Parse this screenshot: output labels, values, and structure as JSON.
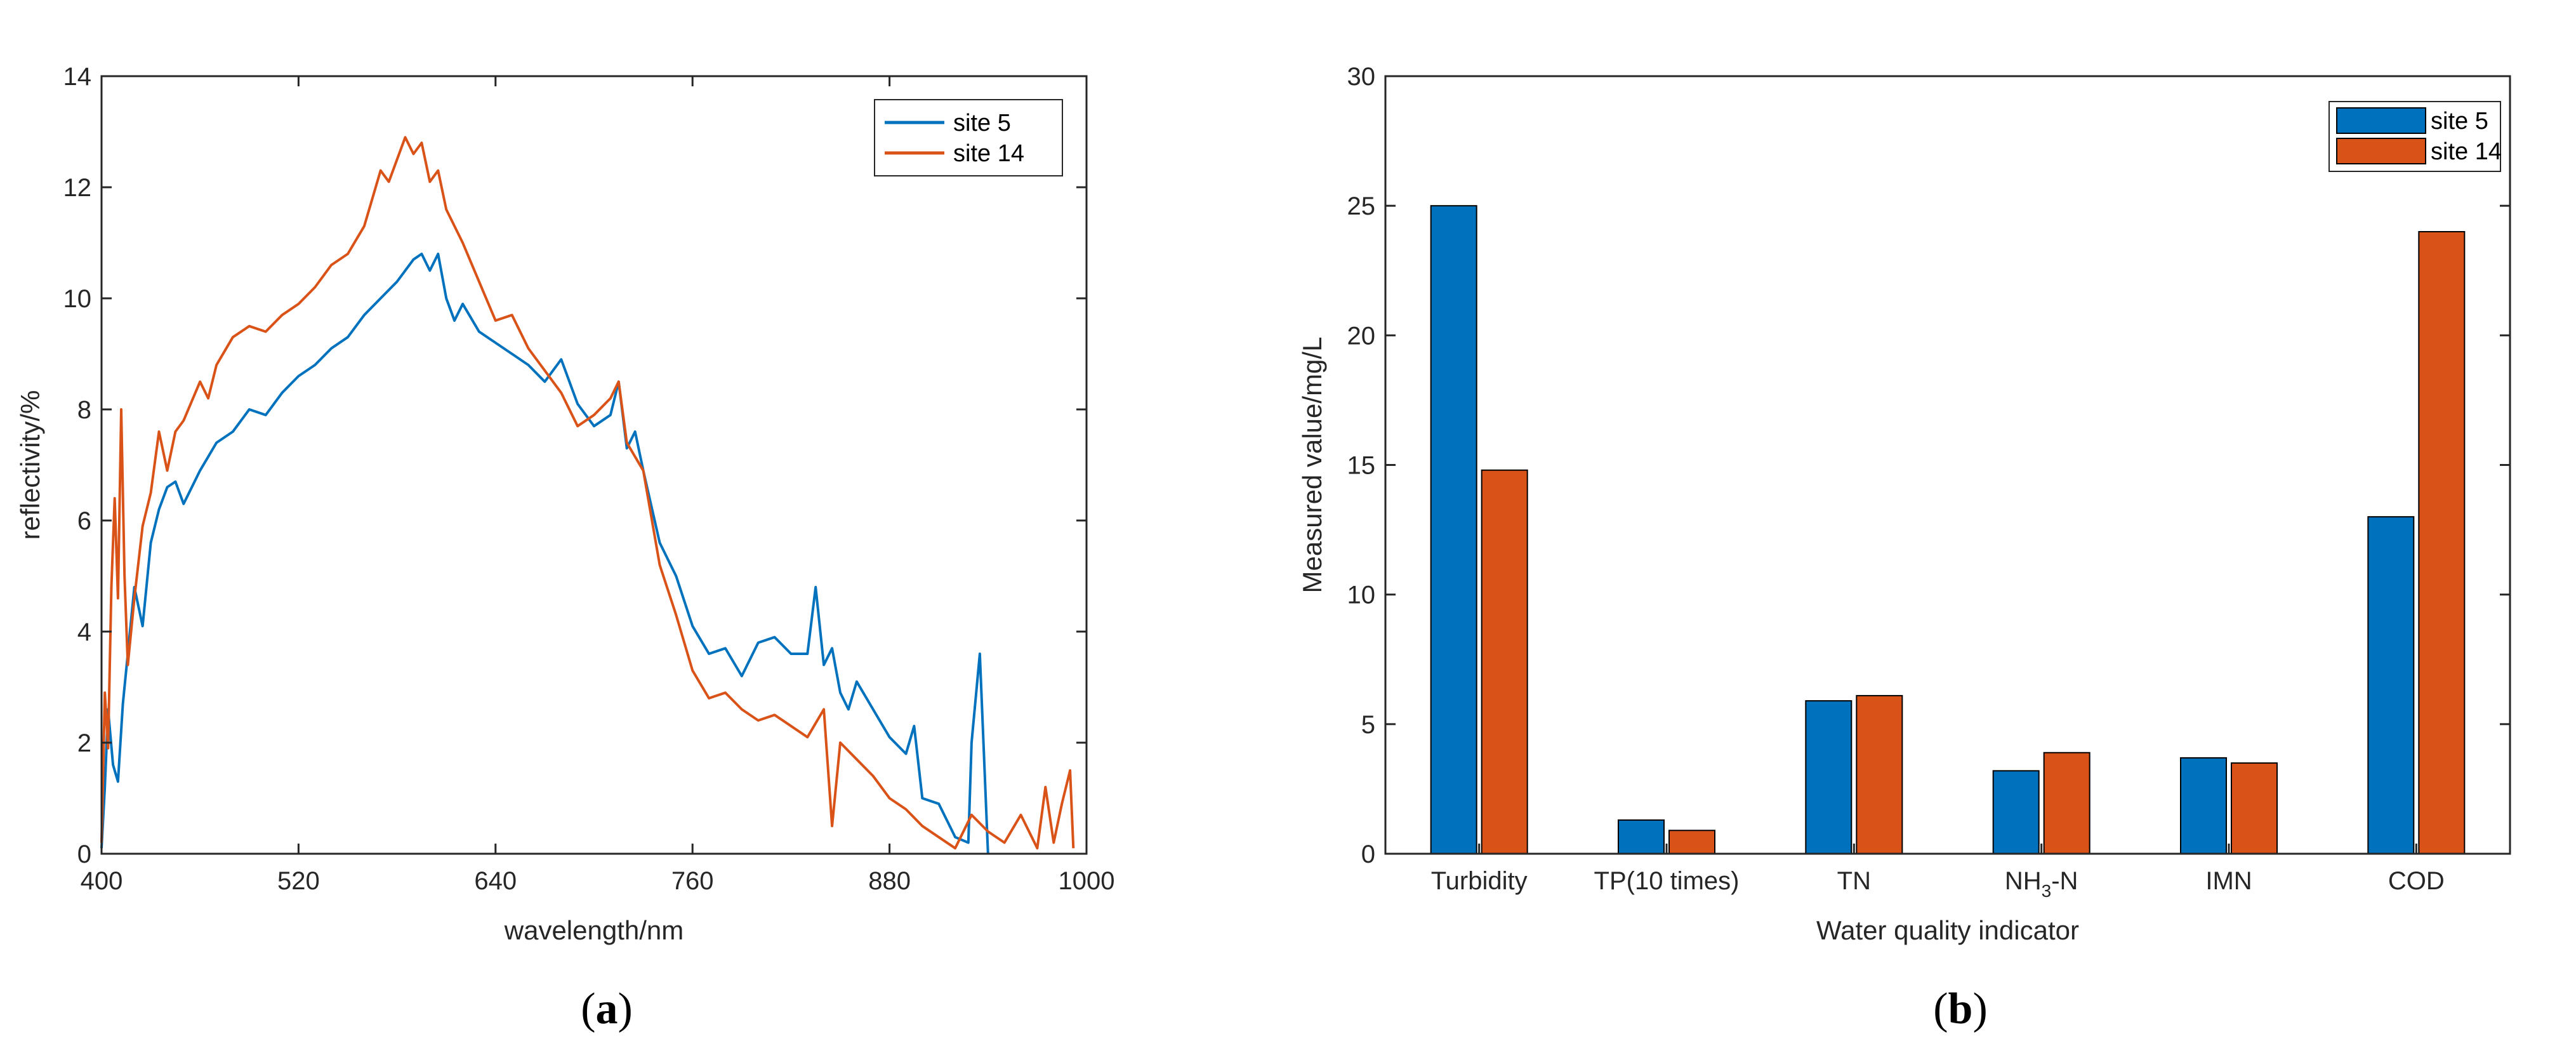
{
  "colors": {
    "site5": "#0072BD",
    "site14": "#D95319",
    "axis": "#262626"
  },
  "chart_data": [
    {
      "type": "line",
      "caption": {
        "open": "(",
        "letter": "a",
        "close": ")"
      },
      "title": "",
      "xlabel": "wavelength/nm",
      "ylabel": "reflectivity/%",
      "xlim": [
        400,
        1000
      ],
      "ylim": [
        0,
        14
      ],
      "xticks": [
        400,
        520,
        640,
        760,
        880,
        1000
      ],
      "yticks": [
        0,
        2,
        4,
        6,
        8,
        10,
        12,
        14
      ],
      "legend_position": "top-right",
      "series": [
        {
          "name": "site 5",
          "color": "#0072BD",
          "x": [
            400,
            402,
            404,
            407,
            410,
            413,
            416,
            420,
            425,
            430,
            435,
            440,
            445,
            450,
            460,
            470,
            480,
            490,
            500,
            510,
            520,
            530,
            540,
            550,
            560,
            570,
            580,
            590,
            595,
            600,
            605,
            610,
            615,
            620,
            630,
            640,
            650,
            660,
            670,
            680,
            690,
            700,
            710,
            715,
            720,
            725,
            730,
            740,
            750,
            760,
            770,
            780,
            790,
            800,
            810,
            820,
            830,
            835,
            840,
            845,
            850,
            855,
            860,
            870,
            880,
            890,
            895,
            900,
            910,
            920,
            928,
            930,
            935,
            940
          ],
          "y": [
            0.1,
            1.2,
            2.6,
            1.6,
            1.3,
            2.7,
            3.6,
            4.8,
            4.1,
            5.6,
            6.2,
            6.6,
            6.7,
            6.3,
            6.9,
            7.4,
            7.6,
            8.0,
            7.9,
            8.3,
            8.6,
            8.8,
            9.1,
            9.3,
            9.7,
            10.0,
            10.3,
            10.7,
            10.8,
            10.5,
            10.8,
            10.0,
            9.6,
            9.9,
            9.4,
            9.2,
            9.0,
            8.8,
            8.5,
            8.9,
            8.1,
            7.7,
            7.9,
            8.5,
            7.3,
            7.6,
            6.9,
            5.6,
            5.0,
            4.1,
            3.6,
            3.7,
            3.2,
            3.8,
            3.9,
            3.6,
            3.6,
            4.8,
            3.4,
            3.7,
            2.9,
            2.6,
            3.1,
            2.6,
            2.1,
            1.8,
            2.3,
            1.0,
            0.9,
            0.3,
            0.2,
            2.0,
            3.6,
            0.0
          ]
        },
        {
          "name": "site 14",
          "color": "#D95319",
          "x": [
            400,
            402,
            404,
            406,
            408,
            410,
            412,
            414,
            416,
            420,
            425,
            430,
            435,
            440,
            445,
            450,
            460,
            465,
            470,
            480,
            490,
            500,
            510,
            520,
            530,
            540,
            550,
            560,
            565,
            570,
            575,
            580,
            585,
            590,
            595,
            600,
            605,
            610,
            620,
            630,
            640,
            650,
            660,
            670,
            680,
            690,
            700,
            710,
            715,
            720,
            730,
            740,
            750,
            760,
            770,
            780,
            790,
            800,
            810,
            820,
            830,
            840,
            845,
            850,
            860,
            870,
            880,
            890,
            900,
            910,
            920,
            930,
            940,
            950,
            960,
            970,
            975,
            980,
            985,
            990,
            992
          ],
          "y": [
            0.2,
            2.9,
            1.9,
            4.8,
            6.4,
            4.6,
            8.0,
            5.0,
            3.4,
            4.6,
            5.9,
            6.5,
            7.6,
            6.9,
            7.6,
            7.8,
            8.5,
            8.2,
            8.8,
            9.3,
            9.5,
            9.4,
            9.7,
            9.9,
            10.2,
            10.6,
            10.8,
            11.3,
            11.8,
            12.3,
            12.1,
            12.5,
            12.9,
            12.6,
            12.8,
            12.1,
            12.3,
            11.6,
            11.0,
            10.3,
            9.6,
            9.7,
            9.1,
            8.7,
            8.3,
            7.7,
            7.9,
            8.2,
            8.5,
            7.4,
            6.9,
            5.2,
            4.3,
            3.3,
            2.8,
            2.9,
            2.6,
            2.4,
            2.5,
            2.3,
            2.1,
            2.6,
            0.5,
            2.0,
            1.7,
            1.4,
            1.0,
            0.8,
            0.5,
            0.3,
            0.1,
            0.7,
            0.4,
            0.2,
            0.7,
            0.1,
            1.2,
            0.2,
            0.9,
            1.5,
            0.1
          ]
        }
      ]
    },
    {
      "type": "bar",
      "caption": {
        "open": "(",
        "letter": "b",
        "close": ")"
      },
      "title": "",
      "xlabel": "Water quality indicator",
      "ylabel": "Measured value/mg/L",
      "ylim": [
        0,
        30
      ],
      "yticks": [
        0,
        5,
        10,
        15,
        20,
        25,
        30
      ],
      "legend_position": "top-right",
      "categories": [
        "Turbidity",
        "TP(10 times)",
        "TN",
        "NH3-N",
        "IMN",
        "COD"
      ],
      "category_labels": [
        {
          "main": "Turbidity"
        },
        {
          "main": "TP(10 times)"
        },
        {
          "main": "TN"
        },
        {
          "main": "NH",
          "sub": "3",
          "rest": "-N"
        },
        {
          "main": "IMN"
        },
        {
          "main": "COD"
        }
      ],
      "series": [
        {
          "name": "site 5",
          "color": "#0072BD",
          "values": [
            25.0,
            1.3,
            5.9,
            3.2,
            3.7,
            13.0
          ]
        },
        {
          "name": "site 14",
          "color": "#D95319",
          "values": [
            14.8,
            0.9,
            6.1,
            3.9,
            3.5,
            24.0
          ]
        }
      ]
    }
  ]
}
